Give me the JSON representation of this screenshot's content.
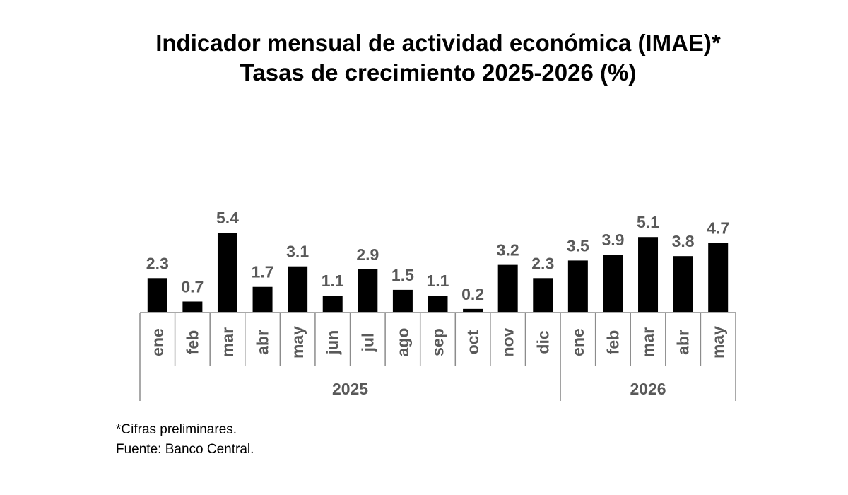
{
  "title_line1": "Indicador mensual de actividad económica (IMAE)*",
  "title_line2": "Tasas de crecimiento 2025-2026 (%)",
  "footnotes": {
    "note": "*Cifras preliminares.",
    "source": "Fuente: Banco Central."
  },
  "colors": {
    "bar": "#000000",
    "label": "#595959",
    "axis": "#8c8c8c"
  },
  "chart_data": {
    "type": "bar",
    "categories": [
      "ene",
      "feb",
      "mar",
      "abr",
      "may",
      "jun",
      "jul",
      "ago",
      "sep",
      "oct",
      "nov",
      "dic",
      "ene",
      "feb",
      "mar",
      "abr",
      "may"
    ],
    "groups": [
      {
        "label": "2025",
        "count": 12
      },
      {
        "label": "2026",
        "count": 5
      }
    ],
    "values": [
      2.3,
      0.7,
      5.4,
      1.7,
      3.1,
      1.1,
      2.9,
      1.5,
      1.1,
      0.2,
      3.2,
      2.3,
      3.5,
      3.9,
      5.1,
      3.8,
      4.7
    ],
    "data_labels": [
      "2.3",
      "0.7",
      "5.4",
      "1.7",
      "3.1",
      "1.1",
      "2.9",
      "1.5",
      "1.1",
      "0.2",
      "3.2",
      "2.3",
      "3.5",
      "3.9",
      "5.1",
      "3.8",
      "4.7"
    ],
    "ylim": [
      0,
      5.4
    ],
    "grid": false,
    "legend": "none"
  }
}
